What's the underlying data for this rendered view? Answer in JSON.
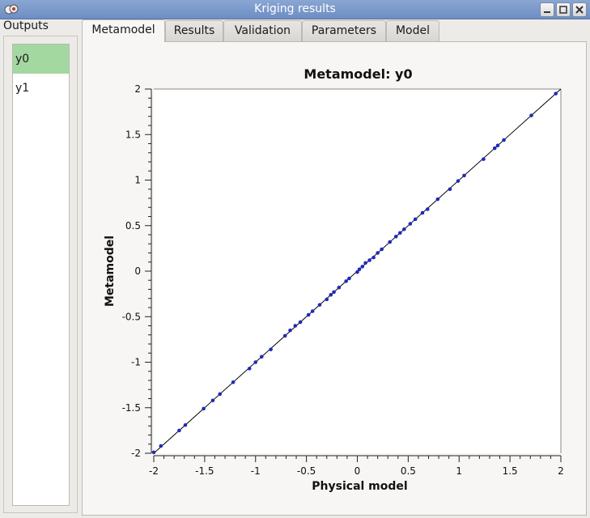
{
  "window": {
    "title": "Kriging results",
    "minimize_icon": "minimize-icon",
    "maximize_icon": "maximize-icon",
    "close_icon": "close-icon"
  },
  "outputs": {
    "label": "Outputs",
    "items": [
      {
        "label": "y0",
        "selected": true
      },
      {
        "label": "y1",
        "selected": false
      }
    ],
    "selected_color": "#a3d8a0"
  },
  "tabs": [
    {
      "label": "Metamodel",
      "active": true
    },
    {
      "label": "Results",
      "active": false
    },
    {
      "label": "Validation",
      "active": false
    },
    {
      "label": "Parameters",
      "active": false
    },
    {
      "label": "Model",
      "active": false
    }
  ],
  "chart_data": {
    "type": "scatter",
    "title": "Metamodel: y0",
    "xlabel": "Physical model",
    "ylabel": "Metamodel",
    "xlim": [
      -2,
      2
    ],
    "ylim": [
      -2,
      2
    ],
    "xticks": [
      "-2",
      "-1.5",
      "-1",
      "-0.5",
      "0",
      "0.5",
      "1",
      "1.5",
      "2"
    ],
    "yticks": [
      "-2",
      "-1.5",
      "-1",
      "-0.5",
      "0",
      "0.5",
      "1",
      "1.5",
      "2"
    ],
    "grid": false,
    "marker_color": "#1f2ab8",
    "diagonal_line": true,
    "x": [
      -2.0,
      -1.93,
      -1.75,
      -1.69,
      -1.51,
      -1.42,
      -1.35,
      -1.22,
      -1.06,
      -1.0,
      -0.94,
      -0.85,
      -0.71,
      -0.66,
      -0.61,
      -0.56,
      -0.48,
      -0.44,
      -0.37,
      -0.3,
      -0.26,
      -0.23,
      -0.18,
      -0.11,
      -0.08,
      0.0,
      0.02,
      0.05,
      0.08,
      0.12,
      0.16,
      0.2,
      0.24,
      0.32,
      0.38,
      0.42,
      0.46,
      0.52,
      0.57,
      0.64,
      0.69,
      0.79,
      0.91,
      0.99,
      1.05,
      1.24,
      1.35,
      1.38,
      1.44,
      1.71,
      1.95
    ],
    "y": [
      -1.99,
      -1.92,
      -1.75,
      -1.69,
      -1.51,
      -1.42,
      -1.35,
      -1.22,
      -1.07,
      -1.0,
      -0.94,
      -0.86,
      -0.71,
      -0.65,
      -0.6,
      -0.56,
      -0.48,
      -0.44,
      -0.37,
      -0.31,
      -0.26,
      -0.23,
      -0.18,
      -0.11,
      -0.08,
      -0.01,
      0.02,
      0.05,
      0.09,
      0.12,
      0.15,
      0.2,
      0.24,
      0.32,
      0.38,
      0.42,
      0.46,
      0.52,
      0.57,
      0.64,
      0.68,
      0.79,
      0.9,
      0.99,
      1.05,
      1.23,
      1.35,
      1.38,
      1.44,
      1.71,
      1.95
    ]
  }
}
